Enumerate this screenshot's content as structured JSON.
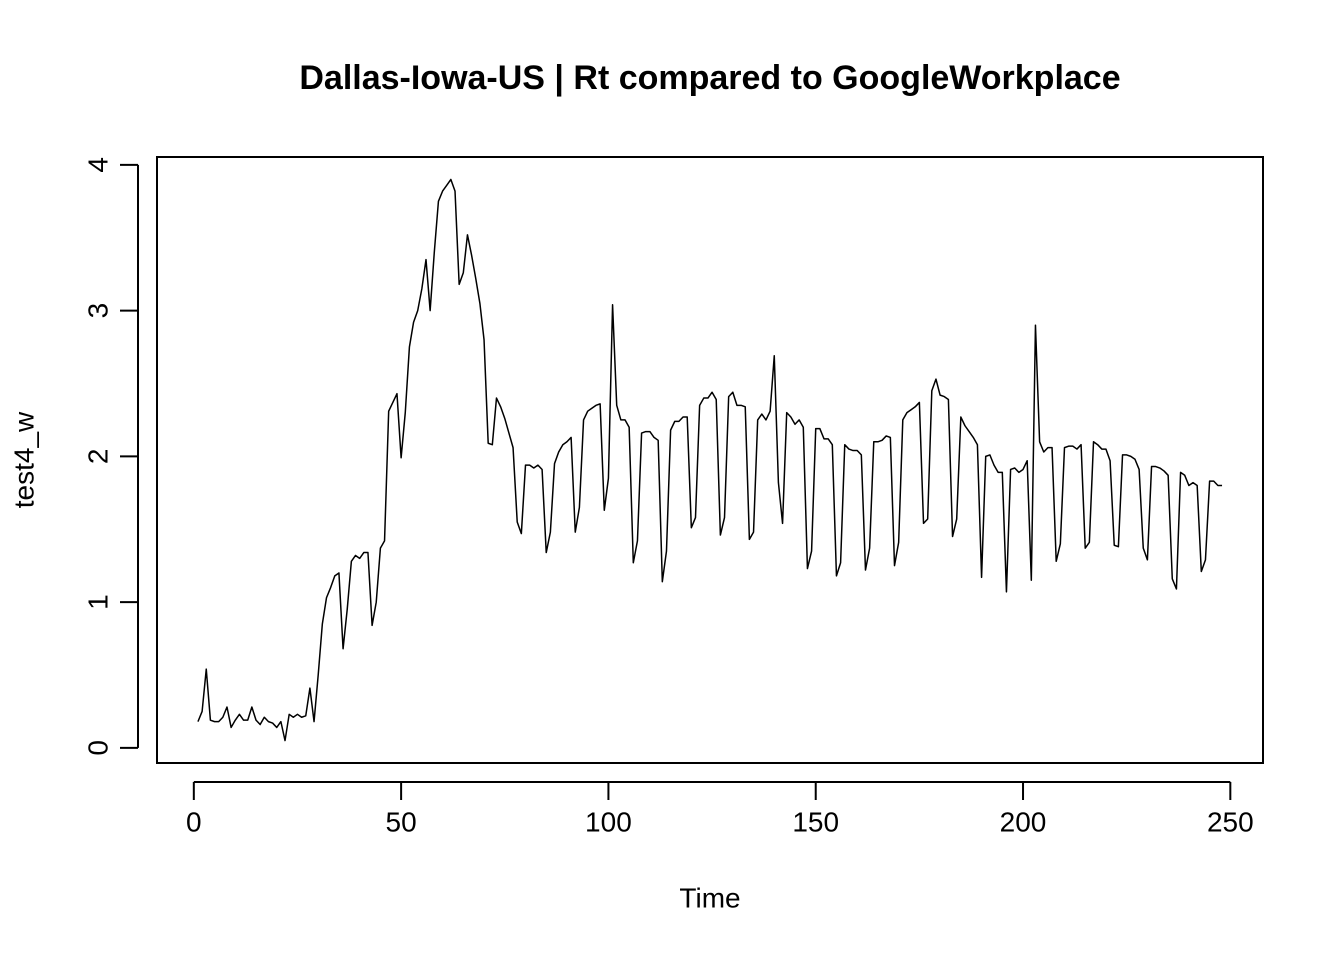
{
  "chart_data": {
    "type": "line",
    "title": "Dallas-Iowa-US | Rt compared to GoogleWorkplace",
    "x_label": "Time",
    "y_label": "test4_w",
    "xlim": [
      -8.88,
      257.88
    ],
    "ylim": [
      -0.104,
      4.054
    ],
    "xticks": [
      0,
      50,
      100,
      150,
      200,
      250
    ],
    "yticks": [
      0,
      1,
      2,
      3,
      4
    ],
    "grid": false,
    "x": [
      1,
      2,
      3,
      4,
      5,
      6,
      7,
      8,
      9,
      10,
      11,
      12,
      13,
      14,
      15,
      16,
      17,
      18,
      19,
      20,
      21,
      22,
      23,
      24,
      25,
      26,
      27,
      28,
      29,
      30,
      31,
      32,
      33,
      34,
      35,
      36,
      37,
      38,
      39,
      40,
      41,
      42,
      43,
      44,
      45,
      46,
      47,
      48,
      49,
      50,
      51,
      52,
      53,
      54,
      55,
      56,
      57,
      58,
      59,
      60,
      61,
      62,
      63,
      64,
      65,
      66,
      67,
      68,
      69,
      70,
      71,
      72,
      73,
      74,
      75,
      76,
      77,
      78,
      79,
      80,
      81,
      82,
      83,
      84,
      85,
      86,
      87,
      88,
      89,
      90,
      91,
      92,
      93,
      94,
      95,
      96,
      97,
      98,
      99,
      100,
      101,
      102,
      103,
      104,
      105,
      106,
      107,
      108,
      109,
      110,
      111,
      112,
      113,
      114,
      115,
      116,
      117,
      118,
      119,
      120,
      121,
      122,
      123,
      124,
      125,
      126,
      127,
      128,
      129,
      130,
      131,
      132,
      133,
      134,
      135,
      136,
      137,
      138,
      139,
      140,
      141,
      142,
      143,
      144,
      145,
      146,
      147,
      148,
      149,
      150,
      151,
      152,
      153,
      154,
      155,
      156,
      157,
      158,
      159,
      160,
      161,
      162,
      163,
      164,
      165,
      166,
      167,
      168,
      169,
      170,
      171,
      172,
      173,
      174,
      175,
      176,
      177,
      178,
      179,
      180,
      181,
      182,
      183,
      184,
      185,
      186,
      187,
      188,
      189,
      190,
      191,
      192,
      193,
      194,
      195,
      196,
      197,
      198,
      199,
      200,
      201,
      202,
      203,
      204,
      205,
      206,
      207,
      208,
      209,
      210,
      211,
      212,
      213,
      214,
      215,
      216,
      217,
      218,
      219,
      220,
      221,
      222,
      223,
      224,
      225,
      226,
      227,
      228,
      229,
      230,
      231,
      232,
      233,
      234,
      235,
      236,
      237,
      238,
      239,
      240,
      241,
      242,
      243,
      244,
      245,
      246,
      247,
      248
    ],
    "series": [
      {
        "color": "#000000",
        "values": [
          0.18,
          0.25,
          0.54,
          0.19,
          0.18,
          0.18,
          0.21,
          0.28,
          0.14,
          0.19,
          0.23,
          0.19,
          0.19,
          0.28,
          0.19,
          0.16,
          0.21,
          0.18,
          0.17,
          0.14,
          0.18,
          0.05,
          0.23,
          0.21,
          0.23,
          0.21,
          0.22,
          0.41,
          0.18,
          0.5,
          0.85,
          1.03,
          1.1,
          1.18,
          1.2,
          0.68,
          0.95,
          1.28,
          1.32,
          1.3,
          1.34,
          1.34,
          0.84,
          1.0,
          1.37,
          1.42,
          2.31,
          2.37,
          2.43,
          1.99,
          2.3,
          2.75,
          2.92,
          3.0,
          3.15,
          3.35,
          3.0,
          3.4,
          3.75,
          3.82,
          3.86,
          3.9,
          3.82,
          3.18,
          3.26,
          3.52,
          3.38,
          3.22,
          3.05,
          2.8,
          2.09,
          2.08,
          2.4,
          2.34,
          2.26,
          2.16,
          2.06,
          1.55,
          1.47,
          1.94,
          1.94,
          1.92,
          1.94,
          1.91,
          1.34,
          1.48,
          1.95,
          2.03,
          2.08,
          2.1,
          2.13,
          1.48,
          1.65,
          2.25,
          2.31,
          2.33,
          2.35,
          2.36,
          1.63,
          1.85,
          3.04,
          2.35,
          2.25,
          2.25,
          2.2,
          1.27,
          1.42,
          2.16,
          2.17,
          2.17,
          2.13,
          2.11,
          1.14,
          1.35,
          2.18,
          2.24,
          2.24,
          2.27,
          2.27,
          1.51,
          1.58,
          2.35,
          2.4,
          2.4,
          2.44,
          2.39,
          1.46,
          1.58,
          2.41,
          2.44,
          2.35,
          2.35,
          2.34,
          1.43,
          1.48,
          2.25,
          2.29,
          2.25,
          2.31,
          2.69,
          1.82,
          1.54,
          2.3,
          2.27,
          2.22,
          2.25,
          2.2,
          1.23,
          1.35,
          2.19,
          2.19,
          2.12,
          2.12,
          2.08,
          1.18,
          1.27,
          2.08,
          2.05,
          2.04,
          2.04,
          2.01,
          1.22,
          1.37,
          2.1,
          2.1,
          2.11,
          2.14,
          2.13,
          1.25,
          1.41,
          2.25,
          2.3,
          2.32,
          2.34,
          2.37,
          1.54,
          1.57,
          2.45,
          2.53,
          2.42,
          2.41,
          2.39,
          1.45,
          1.57,
          2.27,
          2.21,
          2.17,
          2.13,
          2.08,
          1.17,
          2.0,
          2.01,
          1.94,
          1.89,
          1.89,
          1.07,
          1.91,
          1.92,
          1.89,
          1.91,
          1.97,
          1.15,
          2.9,
          2.1,
          2.03,
          2.06,
          2.06,
          1.28,
          1.4,
          2.06,
          2.07,
          2.07,
          2.05,
          2.08,
          1.37,
          1.41,
          2.1,
          2.08,
          2.05,
          2.05,
          1.97,
          1.39,
          1.38,
          2.01,
          2.01,
          2.0,
          1.98,
          1.91,
          1.37,
          1.29,
          1.93,
          1.93,
          1.92,
          1.9,
          1.87,
          1.16,
          1.09,
          1.89,
          1.87,
          1.8,
          1.82,
          1.8,
          1.21,
          1.29,
          1.83,
          1.83,
          1.8,
          1.8
        ]
      }
    ]
  }
}
